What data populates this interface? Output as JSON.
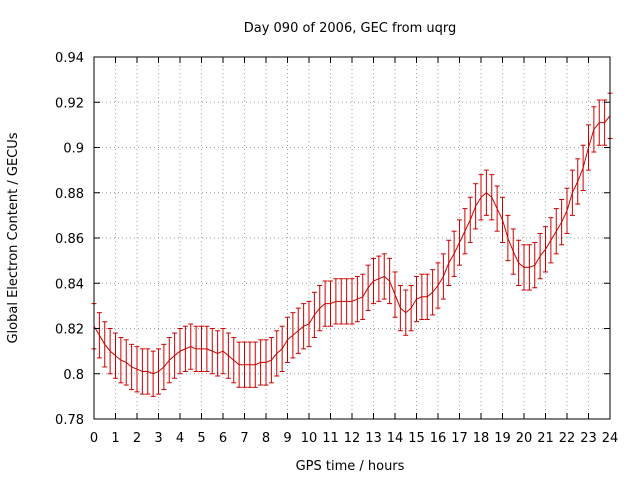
{
  "chart_data": {
    "type": "line",
    "title": "Day 090 of 2006, GEC from uqrg",
    "xlabel": "GPS time / hours",
    "ylabel": "Global Electron Content / GECUs",
    "xlim": [
      0,
      24
    ],
    "ylim": [
      0.78,
      0.94
    ],
    "xticks": [
      "0",
      "1",
      "2",
      "3",
      "4",
      "5",
      "6",
      "7",
      "8",
      "9",
      "10",
      "11",
      "12",
      "13",
      "14",
      "15",
      "16",
      "17",
      "18",
      "19",
      "20",
      "21",
      "22",
      "23",
      "24"
    ],
    "yticks": [
      "0.78",
      "0.8",
      "0.82",
      "0.84",
      "0.86",
      "0.88",
      "0.9",
      "0.92",
      "0.94"
    ],
    "grid": true,
    "colors": {
      "series": "#cc0000",
      "grid": "#a0a0a0",
      "axis": "#000000"
    },
    "series": [
      {
        "error": 0.01,
        "points": [
          {
            "x": 0.0,
            "y": 0.821
          },
          {
            "x": 0.25,
            "y": 0.817
          },
          {
            "x": 0.5,
            "y": 0.813
          },
          {
            "x": 0.75,
            "y": 0.81
          },
          {
            "x": 1.0,
            "y": 0.808
          },
          {
            "x": 1.25,
            "y": 0.806
          },
          {
            "x": 1.5,
            "y": 0.805
          },
          {
            "x": 1.75,
            "y": 0.803
          },
          {
            "x": 2.0,
            "y": 0.802
          },
          {
            "x": 2.25,
            "y": 0.801
          },
          {
            "x": 2.5,
            "y": 0.801
          },
          {
            "x": 2.75,
            "y": 0.8
          },
          {
            "x": 3.0,
            "y": 0.801
          },
          {
            "x": 3.25,
            "y": 0.803
          },
          {
            "x": 3.5,
            "y": 0.806
          },
          {
            "x": 3.75,
            "y": 0.808
          },
          {
            "x": 4.0,
            "y": 0.81
          },
          {
            "x": 4.25,
            "y": 0.811
          },
          {
            "x": 4.5,
            "y": 0.812
          },
          {
            "x": 4.75,
            "y": 0.811
          },
          {
            "x": 5.0,
            "y": 0.811
          },
          {
            "x": 5.25,
            "y": 0.811
          },
          {
            "x": 5.5,
            "y": 0.81
          },
          {
            "x": 5.75,
            "y": 0.809
          },
          {
            "x": 6.0,
            "y": 0.81
          },
          {
            "x": 6.25,
            "y": 0.808
          },
          {
            "x": 6.5,
            "y": 0.806
          },
          {
            "x": 6.75,
            "y": 0.804
          },
          {
            "x": 7.0,
            "y": 0.804
          },
          {
            "x": 7.25,
            "y": 0.804
          },
          {
            "x": 7.5,
            "y": 0.804
          },
          {
            "x": 7.75,
            "y": 0.805
          },
          {
            "x": 8.0,
            "y": 0.805
          },
          {
            "x": 8.25,
            "y": 0.806
          },
          {
            "x": 8.5,
            "y": 0.809
          },
          {
            "x": 8.75,
            "y": 0.811
          },
          {
            "x": 9.0,
            "y": 0.815
          },
          {
            "x": 9.25,
            "y": 0.817
          },
          {
            "x": 9.5,
            "y": 0.819
          },
          {
            "x": 9.75,
            "y": 0.821
          },
          {
            "x": 10.0,
            "y": 0.822
          },
          {
            "x": 10.25,
            "y": 0.826
          },
          {
            "x": 10.5,
            "y": 0.829
          },
          {
            "x": 10.75,
            "y": 0.831
          },
          {
            "x": 11.0,
            "y": 0.831
          },
          {
            "x": 11.25,
            "y": 0.832
          },
          {
            "x": 11.5,
            "y": 0.832
          },
          {
            "x": 11.75,
            "y": 0.832
          },
          {
            "x": 12.0,
            "y": 0.832
          },
          {
            "x": 12.25,
            "y": 0.833
          },
          {
            "x": 12.5,
            "y": 0.834
          },
          {
            "x": 12.75,
            "y": 0.838
          },
          {
            "x": 13.0,
            "y": 0.841
          },
          {
            "x": 13.25,
            "y": 0.842
          },
          {
            "x": 13.5,
            "y": 0.843
          },
          {
            "x": 13.75,
            "y": 0.841
          },
          {
            "x": 14.0,
            "y": 0.835
          },
          {
            "x": 14.25,
            "y": 0.829
          },
          {
            "x": 14.5,
            "y": 0.827
          },
          {
            "x": 14.75,
            "y": 0.829
          },
          {
            "x": 15.0,
            "y": 0.833
          },
          {
            "x": 15.25,
            "y": 0.834
          },
          {
            "x": 15.5,
            "y": 0.834
          },
          {
            "x": 15.75,
            "y": 0.836
          },
          {
            "x": 16.0,
            "y": 0.839
          },
          {
            "x": 16.25,
            "y": 0.843
          },
          {
            "x": 16.5,
            "y": 0.849
          },
          {
            "x": 16.75,
            "y": 0.853
          },
          {
            "x": 17.0,
            "y": 0.858
          },
          {
            "x": 17.25,
            "y": 0.863
          },
          {
            "x": 17.5,
            "y": 0.868
          },
          {
            "x": 17.75,
            "y": 0.874
          },
          {
            "x": 18.0,
            "y": 0.878
          },
          {
            "x": 18.25,
            "y": 0.88
          },
          {
            "x": 18.5,
            "y": 0.878
          },
          {
            "x": 18.75,
            "y": 0.873
          },
          {
            "x": 19.0,
            "y": 0.868
          },
          {
            "x": 19.25,
            "y": 0.86
          },
          {
            "x": 19.5,
            "y": 0.854
          },
          {
            "x": 19.75,
            "y": 0.849
          },
          {
            "x": 20.0,
            "y": 0.847
          },
          {
            "x": 20.25,
            "y": 0.847
          },
          {
            "x": 20.5,
            "y": 0.848
          },
          {
            "x": 20.75,
            "y": 0.852
          },
          {
            "x": 21.0,
            "y": 0.855
          },
          {
            "x": 21.25,
            "y": 0.859
          },
          {
            "x": 21.5,
            "y": 0.863
          },
          {
            "x": 21.75,
            "y": 0.867
          },
          {
            "x": 22.0,
            "y": 0.872
          },
          {
            "x": 22.25,
            "y": 0.88
          },
          {
            "x": 22.5,
            "y": 0.885
          },
          {
            "x": 22.75,
            "y": 0.891
          },
          {
            "x": 23.0,
            "y": 0.9
          },
          {
            "x": 23.25,
            "y": 0.908
          },
          {
            "x": 23.5,
            "y": 0.911
          },
          {
            "x": 23.75,
            "y": 0.911
          },
          {
            "x": 24.0,
            "y": 0.914
          }
        ]
      }
    ]
  }
}
